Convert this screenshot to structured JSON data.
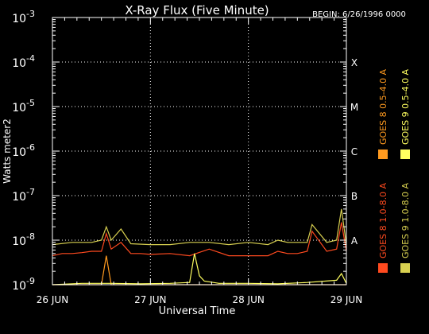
{
  "chart_data": {
    "type": "line",
    "title": "X-Ray Flux (Five Minute)",
    "begin_label": "BEGIN: 6/26/1996 0000",
    "xlabel": "Universal Time",
    "ylabel": "Watts meter2",
    "y_scale": "log",
    "ylim_exponent": [
      -9,
      -3
    ],
    "y_tick_base": "10",
    "y_tick_exponents": [
      "-9",
      "-8",
      "-7",
      "-6",
      "-5",
      "-4",
      "-3"
    ],
    "xlim_days": [
      0,
      3
    ],
    "x_tick_labels": [
      "26 JUN",
      "27 JUN",
      "28 JUN",
      "29 JUN"
    ],
    "right_axis_labels": [
      {
        "label": "A",
        "exponent": -8
      },
      {
        "label": "B",
        "exponent": -7
      },
      {
        "label": "C",
        "exponent": -6
      },
      {
        "label": "M",
        "exponent": -5
      },
      {
        "label": "X",
        "exponent": -4
      }
    ],
    "gridlines": "dotted",
    "legend_placement": "right, vertical",
    "series": [
      {
        "name": "GOES 8 1.0-8.0 A",
        "color": "#ff4a1f",
        "x": [
          0.0,
          0.1,
          0.2,
          0.3,
          0.4,
          0.5,
          0.55,
          0.6,
          0.7,
          0.8,
          0.9,
          1.0,
          1.2,
          1.4,
          1.6,
          1.8,
          2.0,
          2.2,
          2.3,
          2.4,
          2.5,
          2.6,
          2.65,
          2.8,
          2.9,
          2.95,
          3.0
        ],
        "y_exponent": [
          -8.35,
          -8.3,
          -8.3,
          -8.28,
          -8.25,
          -8.25,
          -7.85,
          -8.2,
          -8.05,
          -8.3,
          -8.3,
          -8.32,
          -8.3,
          -8.35,
          -8.2,
          -8.35,
          -8.35,
          -8.35,
          -8.25,
          -8.3,
          -8.3,
          -8.25,
          -7.8,
          -8.25,
          -8.2,
          -7.6,
          -8.25
        ]
      },
      {
        "name": "GOES 8 0.5-4.0 A",
        "color": "#ff9a1f",
        "x": [
          0.0,
          0.5,
          0.55,
          0.6,
          1.0,
          1.5,
          2.0,
          2.3,
          2.4,
          2.5,
          3.0
        ],
        "y_exponent": [
          -9.0,
          -9.0,
          -8.35,
          -9.0,
          -9.0,
          -9.0,
          -9.0,
          -9.0,
          -9.0,
          -9.0,
          -9.0
        ]
      },
      {
        "name": "GOES 9 1.0-8.0 A",
        "color": "#d8d050",
        "x": [
          0.0,
          0.2,
          0.4,
          0.5,
          0.55,
          0.6,
          0.7,
          0.8,
          1.0,
          1.2,
          1.4,
          1.6,
          1.8,
          2.0,
          2.2,
          2.3,
          2.4,
          2.6,
          2.65,
          2.8,
          2.9,
          2.95,
          3.0
        ],
        "y_exponent": [
          -8.1,
          -8.05,
          -8.05,
          -8.0,
          -7.7,
          -8.0,
          -7.75,
          -8.08,
          -8.1,
          -8.1,
          -8.05,
          -8.05,
          -8.1,
          -8.05,
          -8.1,
          -8.0,
          -8.05,
          -8.05,
          -7.65,
          -8.05,
          -8.0,
          -7.3,
          -8.1
        ]
      },
      {
        "name": "GOES 9 0.5-4.0 A",
        "color": "#ffff60",
        "x": [
          0.0,
          0.3,
          0.6,
          0.9,
          1.2,
          1.4,
          1.45,
          1.5,
          1.55,
          1.7,
          2.0,
          2.3,
          2.6,
          2.9,
          2.95,
          3.0
        ],
        "y_exponent": [
          -9.0,
          -8.97,
          -8.97,
          -8.98,
          -8.97,
          -8.95,
          -8.3,
          -8.8,
          -8.92,
          -8.97,
          -8.97,
          -8.98,
          -8.95,
          -8.9,
          -8.75,
          -8.97
        ]
      }
    ]
  }
}
